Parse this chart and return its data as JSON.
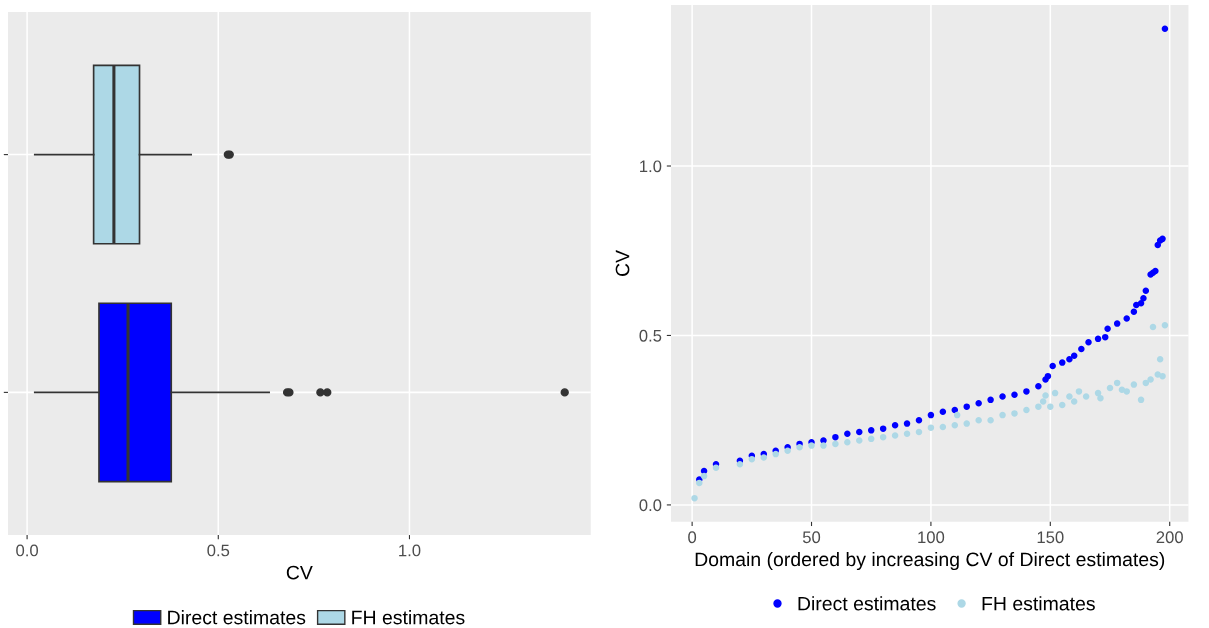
{
  "chart_data": [
    {
      "type": "box",
      "orientation": "horizontal",
      "xlabel": "CV",
      "categories": [
        null,
        null
      ],
      "xlim": [
        -0.05,
        1.474
      ],
      "xticks": [
        {
          "value": 0,
          "label": "0.0"
        },
        {
          "value": 0.5,
          "label": "0.5"
        },
        {
          "value": 1.0,
          "label": "1.0"
        }
      ],
      "tick_labels": "x",
      "grid": true,
      "legend": "bottom",
      "series": [
        {
          "name": "Direct estimates",
          "color": "#0000ff",
          "boxes": [
            null,
            {
              "low": 0.02,
              "q1": 0.188,
              "median": 0.264,
              "q3": 0.377,
              "high": 0.633,
              "outliers": [
                0.68,
                0.686,
                0.767,
                0.785,
                1.406
              ]
            }
          ]
        },
        {
          "name": "FH estimates",
          "color": "#add8e6",
          "boxes": [
            {
              "low": 0.02,
              "q1": 0.174,
              "median": 0.227,
              "q3": 0.294,
              "high": 0.429,
              "outliers": [
                0.525,
                0.53
              ]
            },
            null
          ]
        }
      ]
    },
    {
      "type": "scatter",
      "xlabel": "Domain (ordered by increasing CV of Direct estimates)",
      "ylabel": "CV",
      "xlim": [
        -8.85,
        207.85
      ],
      "xticks": [
        0,
        50,
        100,
        150,
        200
      ],
      "ylim": [
        -0.05,
        1.475
      ],
      "yticks": [
        {
          "value": 0,
          "label": "0.0"
        },
        {
          "value": 0.5,
          "label": "0.5"
        },
        {
          "value": 1.0,
          "label": "1.0"
        }
      ],
      "grid": true,
      "legend": "bottom",
      "marker": "circle",
      "series": [
        {
          "name": "Direct estimates",
          "color": "#0000ff",
          "x": [
            3,
            5,
            10,
            20,
            25,
            30,
            35,
            40,
            45,
            50,
            55,
            60,
            65,
            70,
            75,
            80,
            85,
            90,
            95,
            100,
            105,
            110,
            115,
            120,
            125,
            130,
            135,
            140,
            145,
            148,
            149,
            151,
            155,
            158,
            160,
            163,
            166,
            170,
            173,
            174,
            178,
            182,
            185,
            186,
            188,
            189,
            190,
            192,
            193,
            194,
            195,
            196,
            197,
            198
          ],
          "values": [
            0.075,
            0.1,
            0.12,
            0.13,
            0.145,
            0.15,
            0.16,
            0.17,
            0.18,
            0.185,
            0.19,
            0.2,
            0.21,
            0.215,
            0.22,
            0.225,
            0.235,
            0.24,
            0.25,
            0.265,
            0.275,
            0.28,
            0.29,
            0.3,
            0.31,
            0.32,
            0.325,
            0.335,
            0.35,
            0.37,
            0.38,
            0.41,
            0.42,
            0.43,
            0.44,
            0.46,
            0.48,
            0.49,
            0.495,
            0.52,
            0.535,
            0.55,
            0.57,
            0.59,
            0.595,
            0.61,
            0.632,
            0.68,
            0.685,
            0.69,
            0.767,
            0.78,
            0.785,
            1.405
          ]
        },
        {
          "name": "FH estimates",
          "color": "#add8e6",
          "x": [
            1,
            3,
            5,
            10,
            20,
            25,
            30,
            35,
            40,
            45,
            50,
            55,
            60,
            65,
            70,
            75,
            80,
            85,
            90,
            95,
            100,
            105,
            110,
            111,
            115,
            120,
            125,
            130,
            135,
            140,
            145,
            147,
            148,
            150,
            152,
            155,
            158,
            160,
            162,
            165,
            170,
            171,
            175,
            178,
            180,
            182,
            185,
            188,
            190,
            192,
            193,
            195,
            196,
            197,
            198
          ],
          "values": [
            0.02,
            0.065,
            0.085,
            0.11,
            0.12,
            0.135,
            0.14,
            0.15,
            0.16,
            0.17,
            0.175,
            0.175,
            0.18,
            0.185,
            0.19,
            0.195,
            0.2,
            0.205,
            0.21,
            0.215,
            0.228,
            0.23,
            0.235,
            0.265,
            0.24,
            0.25,
            0.25,
            0.265,
            0.27,
            0.28,
            0.29,
            0.305,
            0.323,
            0.29,
            0.33,
            0.295,
            0.32,
            0.305,
            0.335,
            0.32,
            0.33,
            0.315,
            0.345,
            0.36,
            0.34,
            0.335,
            0.355,
            0.31,
            0.36,
            0.37,
            0.525,
            0.385,
            0.43,
            0.38,
            0.53
          ]
        }
      ]
    }
  ]
}
